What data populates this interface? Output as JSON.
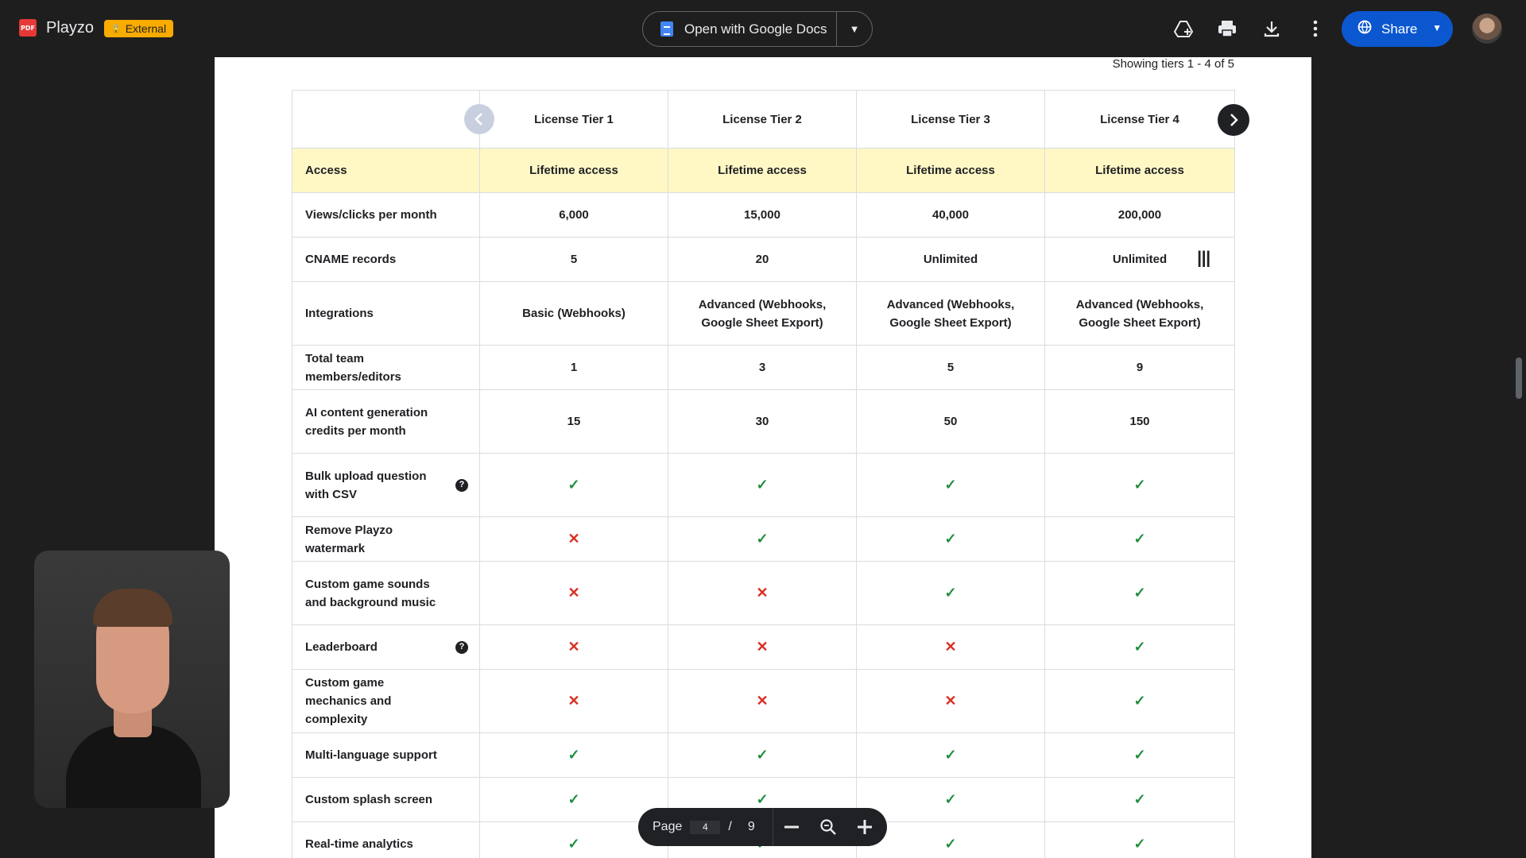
{
  "app": {
    "badge": "PDF",
    "title": "Playzo",
    "external_label": "External",
    "open_with_label": "Open with Google Docs",
    "share_label": "Share"
  },
  "document": {
    "showing": "Showing tiers 1 - 4 of 5",
    "columns": [
      "License Tier 1",
      "License Tier 2",
      "License Tier 3",
      "License Tier 4"
    ],
    "rows": [
      {
        "label": "Access",
        "help": false,
        "highlight": true,
        "cells": [
          "Lifetime access",
          "Lifetime access",
          "Lifetime access",
          "Lifetime access"
        ]
      },
      {
        "label": "Views/clicks per month",
        "help": false,
        "cells": [
          "6,000",
          "15,000",
          "40,000",
          "200,000"
        ]
      },
      {
        "label": "CNAME records",
        "help": false,
        "cells": [
          "5",
          "20",
          "Unlimited",
          "Unlimited"
        ]
      },
      {
        "label": "Integrations",
        "help": false,
        "cells": [
          "Basic (Webhooks)",
          "Advanced (Webhooks, Google Sheet Export)",
          "Advanced (Webhooks, Google Sheet Export)",
          "Advanced (Webhooks, Google Sheet Export)"
        ]
      },
      {
        "label": "Total team members/editors",
        "help": false,
        "cells": [
          "1",
          "3",
          "5",
          "9"
        ]
      },
      {
        "label": "AI content generation credits per month",
        "help": false,
        "cells": [
          "15",
          "30",
          "50",
          "150"
        ]
      },
      {
        "label": "Bulk upload question with CSV",
        "help": true,
        "cells": [
          "check",
          "check",
          "check",
          "check"
        ]
      },
      {
        "label": "Remove Playzo watermark",
        "help": false,
        "cells": [
          "cross",
          "check",
          "check",
          "check"
        ]
      },
      {
        "label": "Custom game sounds and background music",
        "help": false,
        "cells": [
          "cross",
          "cross",
          "check",
          "check"
        ]
      },
      {
        "label": "Leaderboard",
        "help": true,
        "cells": [
          "cross",
          "cross",
          "cross",
          "check"
        ]
      },
      {
        "label": "Custom game mechanics and complexity",
        "help": false,
        "cells": [
          "cross",
          "cross",
          "cross",
          "check"
        ]
      },
      {
        "label": "Multi-language support",
        "help": false,
        "cells": [
          "check",
          "check",
          "check",
          "check"
        ]
      },
      {
        "label": "Custom splash screen",
        "help": false,
        "cells": [
          "check",
          "check",
          "check",
          "check"
        ]
      },
      {
        "label": "Real-time analytics",
        "help": false,
        "cells": [
          "check",
          "check",
          "check",
          "check"
        ]
      }
    ]
  },
  "pager": {
    "page_label": "Page",
    "current": "4",
    "separator": "/",
    "total": "9"
  },
  "icons": {
    "check": "✓",
    "cross": "✕",
    "help": "?"
  },
  "colors": {
    "accent": "#0b57d0",
    "external": "#f9ab00",
    "highlight_row": "#fff8c5",
    "check": "#1e8e3e",
    "cross": "#d93025"
  }
}
